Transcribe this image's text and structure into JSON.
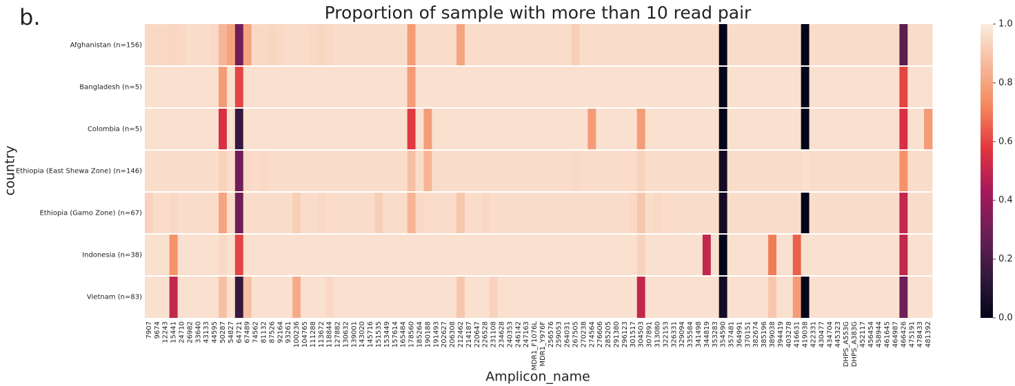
{
  "chart_data": {
    "type": "heatmap",
    "panel_label": "b.",
    "title": "Proportion of sample with more than 10 read pair",
    "x_label": "Amplicon_name",
    "y_label": "country",
    "categories": [
      "7907",
      "9674",
      "12243",
      "15441",
      "24710",
      "26982",
      "33640",
      "43133",
      "44595",
      "50287",
      "54827",
      "64721",
      "67489",
      "74562",
      "81132",
      "87526",
      "92164",
      "93261",
      "100236",
      "104765",
      "111288",
      "113672",
      "118844",
      "127882",
      "130632",
      "139001",
      "143020",
      "145716",
      "151535",
      "153449",
      "157614",
      "165484",
      "178560",
      "185264",
      "190188",
      "191493",
      "202627",
      "206308",
      "212462",
      "214187",
      "220647",
      "226528",
      "231108",
      "234628",
      "240353",
      "246142",
      "247163",
      "MDR1_F1076L",
      "MDR1_Y976F",
      "256576",
      "259053",
      "264031",
      "267505",
      "270238",
      "274564",
      "276606",
      "285205",
      "291380",
      "296123",
      "301517",
      "304503",
      "307891",
      "313080",
      "322153",
      "326331",
      "329094",
      "335584",
      "341498",
      "344819",
      "353283",
      "354590",
      "357481",
      "364991",
      "370151",
      "382674",
      "385196",
      "389038",
      "394419",
      "403278",
      "416631",
      "419038",
      "422331",
      "430477",
      "434704",
      "445323",
      "DHPS_A553G",
      "DHPS_A383G",
      "452117",
      "456454",
      "458944",
      "461645",
      "464987",
      "466426",
      "475191",
      "478433",
      "481392"
    ],
    "y_categories": [
      "Afghanistan (n=156)",
      "Bangladesh (n=5)",
      "Colombia (n=5)",
      "Ethiopia (East Shewa Zone) (n=146)",
      "Ethiopia (Gamo Zone) (n=67)",
      "Indonesia (n=38)",
      "Vietnam (n=83)"
    ],
    "values": [
      [
        0.95,
        0.95,
        0.95,
        0.94,
        0.95,
        0.96,
        0.96,
        0.96,
        0.95,
        0.85,
        0.8,
        0.3,
        0.8,
        0.95,
        0.95,
        0.94,
        0.95,
        0.96,
        0.96,
        0.96,
        0.95,
        0.94,
        0.95,
        0.96,
        0.96,
        0.96,
        0.96,
        0.96,
        0.96,
        0.96,
        0.96,
        0.96,
        0.78,
        0.96,
        0.96,
        0.96,
        0.96,
        0.96,
        0.8,
        0.96,
        0.96,
        0.96,
        0.96,
        0.96,
        0.96,
        0.96,
        0.96,
        0.96,
        0.96,
        0.96,
        0.96,
        0.96,
        0.92,
        0.96,
        0.96,
        0.96,
        0.96,
        0.96,
        0.96,
        0.96,
        0.96,
        0.96,
        0.96,
        0.96,
        0.96,
        0.96,
        0.96,
        0.96,
        0.96,
        0.96,
        0,
        0.96,
        0.96,
        0.96,
        0.96,
        0.96,
        0.96,
        0.96,
        0.96,
        0.96,
        0,
        0.96,
        0.96,
        0.96,
        0.96,
        0.96,
        0.96,
        0.96,
        0.96,
        0.96,
        0.96,
        0.96,
        0.25,
        0.96,
        0.96,
        0.96
      ],
      [
        0.97,
        0.97,
        0.97,
        0.97,
        0.97,
        0.97,
        0.97,
        0.97,
        0.97,
        0.78,
        0.97,
        0.6,
        0.97,
        0.97,
        0.97,
        0.97,
        0.97,
        0.97,
        0.97,
        0.97,
        0.97,
        0.97,
        0.97,
        0.97,
        0.97,
        0.97,
        0.97,
        0.97,
        0.97,
        0.97,
        0.97,
        0.97,
        0.78,
        0.97,
        0.97,
        0.97,
        0.97,
        0.97,
        0.97,
        0.97,
        0.97,
        0.97,
        0.97,
        0.97,
        0.97,
        0.97,
        0.97,
        0.97,
        0.97,
        0.97,
        0.97,
        0.97,
        0.97,
        0.97,
        0.97,
        0.97,
        0.97,
        0.97,
        0.97,
        0.97,
        0.97,
        0.97,
        0.97,
        0.97,
        0.97,
        0.97,
        0.97,
        0.97,
        0.97,
        0.97,
        0,
        0.97,
        0.97,
        0.97,
        0.97,
        0.97,
        0.97,
        0.97,
        0.97,
        0.97,
        0,
        0.97,
        0.97,
        0.97,
        0.97,
        0.97,
        0.97,
        0.97,
        0.97,
        0.97,
        0.97,
        0.97,
        0.6,
        0.97,
        0.97,
        0.97
      ],
      [
        0.97,
        0.97,
        0.97,
        0.97,
        0.97,
        0.97,
        0.97,
        0.97,
        0.97,
        0.55,
        0.97,
        0.15,
        0.97,
        0.97,
        0.97,
        0.97,
        0.97,
        0.97,
        0.97,
        0.97,
        0.97,
        0.97,
        0.97,
        0.97,
        0.97,
        0.97,
        0.97,
        0.97,
        0.97,
        0.97,
        0.97,
        0.97,
        0.58,
        0.97,
        0.78,
        0.97,
        0.97,
        0.97,
        0.97,
        0.97,
        0.97,
        0.97,
        0.97,
        0.97,
        0.97,
        0.97,
        0.97,
        0.97,
        0.97,
        0.97,
        0.97,
        0.97,
        0.97,
        0.97,
        0.78,
        0.97,
        0.97,
        0.97,
        0.97,
        0.97,
        0.78,
        0.97,
        0.97,
        0.97,
        0.97,
        0.97,
        0.97,
        0.97,
        0.97,
        0.97,
        0,
        0.97,
        0.97,
        0.97,
        0.97,
        0.97,
        0.97,
        0.97,
        0.97,
        0.97,
        0,
        0.97,
        0.97,
        0.97,
        0.97,
        0.97,
        0.97,
        0.97,
        0.97,
        0.97,
        0.97,
        0.97,
        0.55,
        0.97,
        0.97,
        0.78
      ],
      [
        0.96,
        0.96,
        0.96,
        0.96,
        0.96,
        0.96,
        0.96,
        0.96,
        0.96,
        0.93,
        0.96,
        0.3,
        0.95,
        0.96,
        0.95,
        0.96,
        0.96,
        0.96,
        0.96,
        0.96,
        0.96,
        0.96,
        0.96,
        0.96,
        0.96,
        0.96,
        0.96,
        0.96,
        0.96,
        0.96,
        0.96,
        0.96,
        0.88,
        0.96,
        0.85,
        0.96,
        0.96,
        0.96,
        0.96,
        0.96,
        0.96,
        0.96,
        0.96,
        0.96,
        0.96,
        0.96,
        0.96,
        0.96,
        0.96,
        0.96,
        0.96,
        0.96,
        0.95,
        0.96,
        0.96,
        0.96,
        0.96,
        0.96,
        0.96,
        0.96,
        0.93,
        0.96,
        0.96,
        0.96,
        0.96,
        0.96,
        0.96,
        0.96,
        0.96,
        0.96,
        0.05,
        0.96,
        0.96,
        0.96,
        0.96,
        0.96,
        0.96,
        0.96,
        0.96,
        0.96,
        0.97,
        0.96,
        0.96,
        0.96,
        0.96,
        0.96,
        0.96,
        0.96,
        0.96,
        0.96,
        0.96,
        0.96,
        0.75,
        0.96,
        0.96,
        0.96
      ],
      [
        0.93,
        0.96,
        0.96,
        0.95,
        0.96,
        0.96,
        0.96,
        0.96,
        0.96,
        0.8,
        0.96,
        0.3,
        0.96,
        0.96,
        0.96,
        0.96,
        0.96,
        0.96,
        0.92,
        0.96,
        0.96,
        0.95,
        0.96,
        0.96,
        0.96,
        0.96,
        0.96,
        0.96,
        0.92,
        0.96,
        0.96,
        0.96,
        0.85,
        0.95,
        0.96,
        0.96,
        0.96,
        0.96,
        0.9,
        0.96,
        0.96,
        0.95,
        0.96,
        0.96,
        0.96,
        0.96,
        0.96,
        0.96,
        0.96,
        0.96,
        0.96,
        0.96,
        0.96,
        0.96,
        0.96,
        0.96,
        0.96,
        0.96,
        0.96,
        0.95,
        0.9,
        0.96,
        0.95,
        0.96,
        0.96,
        0.96,
        0.96,
        0.96,
        0.96,
        0.96,
        0.05,
        0.96,
        0.96,
        0.96,
        0.96,
        0.96,
        0.96,
        0.96,
        0.96,
        0.96,
        0,
        0.96,
        0.96,
        0.96,
        0.96,
        0.96,
        0.96,
        0.96,
        0.96,
        0.96,
        0.96,
        0.96,
        0.5,
        0.96,
        0.96,
        0.96
      ],
      [
        0.97,
        0.97,
        0.97,
        0.75,
        0.97,
        0.97,
        0.97,
        0.97,
        0.97,
        0.95,
        0.97,
        0.6,
        0.97,
        0.97,
        0.97,
        0.97,
        0.97,
        0.97,
        0.97,
        0.97,
        0.97,
        0.97,
        0.97,
        0.97,
        0.97,
        0.97,
        0.97,
        0.97,
        0.97,
        0.97,
        0.97,
        0.97,
        0.97,
        0.97,
        0.97,
        0.97,
        0.97,
        0.97,
        0.97,
        0.97,
        0.97,
        0.97,
        0.97,
        0.97,
        0.97,
        0.97,
        0.97,
        0.97,
        0.97,
        0.97,
        0.97,
        0.97,
        0.97,
        0.97,
        0.97,
        0.97,
        0.97,
        0.97,
        0.97,
        0.97,
        0.93,
        0.97,
        0.97,
        0.97,
        0.97,
        0.97,
        0.97,
        0.97,
        0.5,
        0.97,
        0,
        0.97,
        0.97,
        0.97,
        0.97,
        0.97,
        0.7,
        0.97,
        0.97,
        0.65,
        0.97,
        0.97,
        0.97,
        0.97,
        0.97,
        0.97,
        0.97,
        0.97,
        0.97,
        0.97,
        0.97,
        0.97,
        0.5,
        0.97,
        0.97,
        0.97
      ],
      [
        0.97,
        0.97,
        0.97,
        0.5,
        0.97,
        0.97,
        0.97,
        0.97,
        0.97,
        0.88,
        0.97,
        0.15,
        0.88,
        0.97,
        0.97,
        0.97,
        0.97,
        0.97,
        0.82,
        0.97,
        0.97,
        0.97,
        0.95,
        0.97,
        0.97,
        0.97,
        0.97,
        0.97,
        0.97,
        0.97,
        0.97,
        0.97,
        0.97,
        0.97,
        0.97,
        0.97,
        0.97,
        0.97,
        0.9,
        0.97,
        0.97,
        0.97,
        0.93,
        0.97,
        0.97,
        0.97,
        0.97,
        0.97,
        0.97,
        0.97,
        0.97,
        0.97,
        0.97,
        0.97,
        0.97,
        0.97,
        0.97,
        0.97,
        0.97,
        0.97,
        0.5,
        0.97,
        0.97,
        0.97,
        0.97,
        0.97,
        0.97,
        0.97,
        0.97,
        0.97,
        0.05,
        0.97,
        0.97,
        0.97,
        0.97,
        0.97,
        0.9,
        0.97,
        0.97,
        0.78,
        0,
        0.97,
        0.97,
        0.97,
        0.97,
        0.97,
        0.97,
        0.97,
        0.97,
        0.97,
        0.97,
        0.97,
        0.3,
        0.97,
        0.97,
        0.97
      ]
    ],
    "zlim": [
      0,
      1
    ],
    "colorbar_ticks": [
      {
        "value": 0,
        "label": "0.0"
      },
      0.2,
      0.4,
      0.6,
      0.8,
      {
        "value": 1,
        "label": "1.0"
      }
    ],
    "colorscale": [
      "#03051a",
      "#33193d",
      "#6a1f56",
      "#a4195b",
      "#e0343f",
      "#f3855a",
      "#f6b899",
      "#faebdd"
    ]
  }
}
